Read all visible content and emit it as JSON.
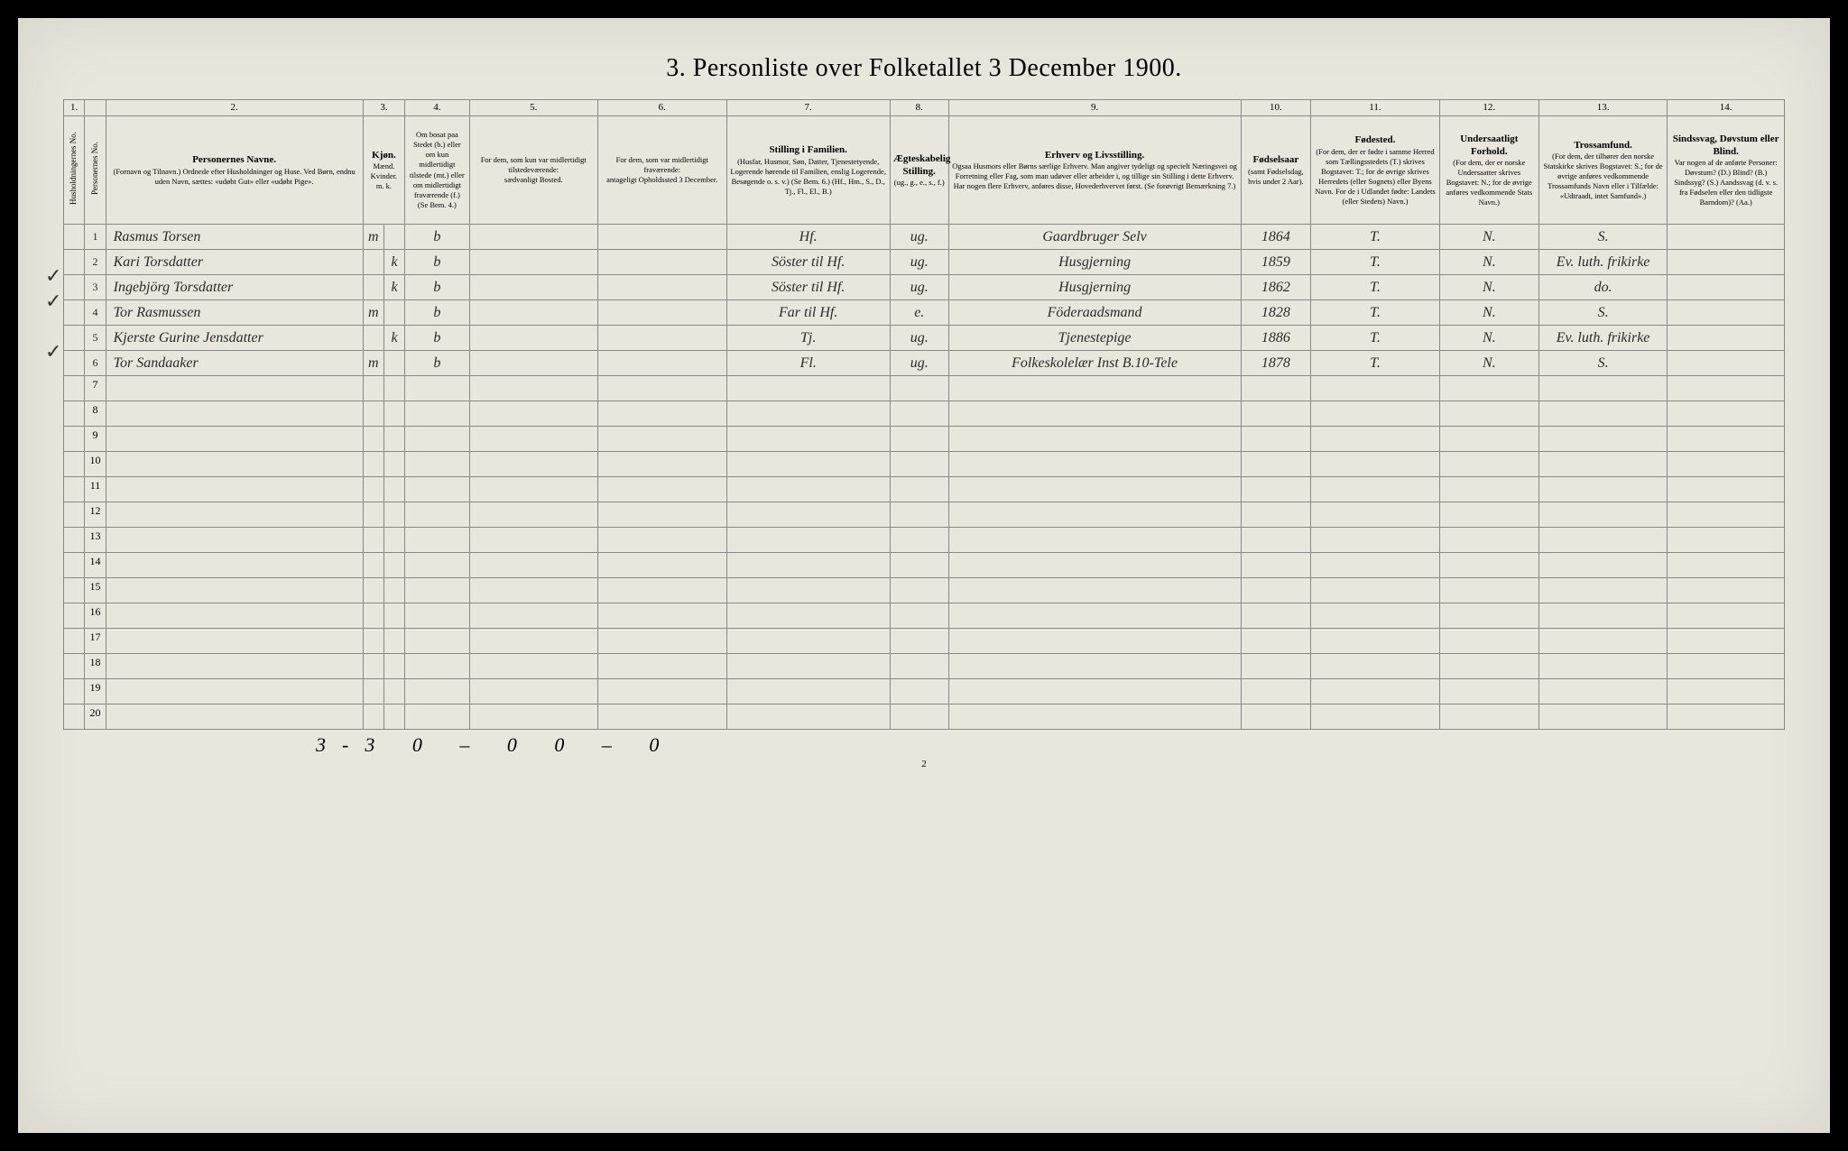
{
  "title": "3. Personliste over Folketallet 3 December 1900.",
  "page_number": "2",
  "column_numbers": [
    "1.",
    "",
    "2.",
    "3.",
    "4.",
    "5.",
    "6.",
    "7.",
    "8.",
    "9.",
    "10.",
    "11.",
    "12.",
    "13.",
    "14."
  ],
  "headers": {
    "c1": "Husholdningernes No.",
    "c1b": "Personernes No.",
    "c2": "Personernes Navne.",
    "c2_sub": "(Fornavn og Tilnavn.)\nOrdnede efter Husholdninger og Huse.\nVed Børn, endnu uden Navn, sættes: «udøbt Gut» eller «udøbt Pige».",
    "c3": "Kjøn.",
    "c3_sub": "Mænd.\nKvinder.\nm. k.",
    "c4": "Om bosat paa Stedet (b.) eller om kun midlertidigt tilstede (mt.) eller om midlertidigt fraværende (f.)",
    "c4_sub": "(Se Bem. 4.)",
    "c5": "For dem, som kun var midlertidigt tilstedeværende:",
    "c5_sub": "sædvanligt Bosted.",
    "c6": "For dem, som var midlertidigt fraværende:",
    "c6_sub": "antageligt Opholdssted 3 December.",
    "c7": "Stilling i Familien.",
    "c7_sub": "(Husfar, Husmor, Søn, Datter, Tjenestetyende, Logerende hørende til Familien, enslig Logerende, Besøgende o. s. v.)\n(Se Bem. 6.)\n(Hf., Hm., S., D., Tj., Fl., El., B.)",
    "c8": "Ægteskabelig Stilling.",
    "c8_sub": "(ug., g., e., s., f.)",
    "c9": "Erhverv og Livsstilling.",
    "c9_sub": "Ogsaa Husmors eller Børns særlige Erhverv. Man angiver tydeligt og specielt Næringsvei og Forretning eller Fag, som man udøver eller arbeider i, og tillige sin Stilling i dette Erhverv.\nHar nogen flere Erhverv, anføres disse, Hovederhvervet først.\n(Se forøvrigt Bemærkning 7.)",
    "c10": "Fødselsaar",
    "c10_sub": "(samt Fødselsdag, hvis under 2 Aar).",
    "c11": "Fødested.",
    "c11_sub": "(For dem, der er fødte i samme Herred som Tællingsstedets (T.) skrives Bogstavet: T.; for de øvrige skrives Herredets (eller Sognets) eller Byens Navn. For de i Udlandet fødte: Landets (eller Stedets) Navn.)",
    "c12": "Undersaatligt Forhold.",
    "c12_sub": "(For dem, der er norske Undersaatter skrives Bogstavet: N.; for de øvrige anføres vedkommende Stats Navn.)",
    "c13": "Trossamfund.",
    "c13_sub": "(For dem, der tilhører den norske Statskirke skrives Bogstavet: S.; for de øvrige anføres vedkommende Trossamfunds Navn eller i Tilfælde: «Udtraadt, intet Samfund».)",
    "c14": "Sindssvag, Døvstum eller Blind.",
    "c14_sub": "Var nogen af de anførte Personer: Døvstum? (D.) Blind? (B.) Sindssyg? (S.) Aandssvag (d. v. s. fra Fødselen eller den tidligste Barndom)? (Aa.)"
  },
  "rows": [
    {
      "n": "1",
      "name": "Rasmus Torsen",
      "sex": "m",
      "res": "b",
      "fam": "Hf.",
      "mar": "ug.",
      "occ": "Gaardbruger Selv",
      "year": "1864",
      "born": "T.",
      "nat": "N.",
      "rel": "S."
    },
    {
      "n": "2",
      "name": "Kari Torsdatter",
      "sex": "k",
      "res": "b",
      "fam": "Söster til Hf.",
      "mar": "ug.",
      "occ": "Husgjerning",
      "year": "1859",
      "born": "T.",
      "nat": "N.",
      "rel": "Ev. luth. frikirke",
      "check": true
    },
    {
      "n": "3",
      "name": "Ingebjörg Torsdatter",
      "sex": "k",
      "res": "b",
      "fam": "Söster til Hf.",
      "mar": "ug.",
      "occ": "Husgjerning",
      "year": "1862",
      "born": "T.",
      "nat": "N.",
      "rel": "do.",
      "check": true
    },
    {
      "n": "4",
      "name": "Tor Rasmussen",
      "sex": "m",
      "res": "b",
      "fam": "Far til Hf.",
      "mar": "e.",
      "occ": "Föderaadsmand",
      "year": "1828",
      "born": "T.",
      "nat": "N.",
      "rel": "S."
    },
    {
      "n": "5",
      "name": "Kjerste Gurine Jensdatter",
      "sex": "k",
      "res": "b",
      "fam": "Tj.",
      "mar": "ug.",
      "occ": "Tjenestepige",
      "year": "1886",
      "born": "T.",
      "nat": "N.",
      "rel": "Ev. luth. frikirke",
      "check": true
    },
    {
      "n": "6",
      "name": "Tor Sandaaker",
      "sex": "m",
      "res": "b",
      "fam": "Fl.",
      "mar": "ug.",
      "occ": "Folkeskolelær Inst B.10-Tele",
      "year": "1878",
      "born": "T.",
      "nat": "N.",
      "rel": "S."
    }
  ],
  "empty_rows": [
    "7",
    "8",
    "9",
    "10",
    "11",
    "12",
    "13",
    "14",
    "15",
    "16",
    "17",
    "18",
    "19",
    "20"
  ],
  "footer_tally": "3-3  0 – 0    0 – 0",
  "col_widths": [
    "18px",
    "18px",
    "220px",
    "18px",
    "18px",
    "55px",
    "110px",
    "110px",
    "140px",
    "50px",
    "250px",
    "60px",
    "110px",
    "85px",
    "110px",
    "100px"
  ],
  "colors": {
    "page_bg": "#e8e6dd",
    "border": "#888",
    "text": "#2a2a2a",
    "frame": "#000"
  }
}
